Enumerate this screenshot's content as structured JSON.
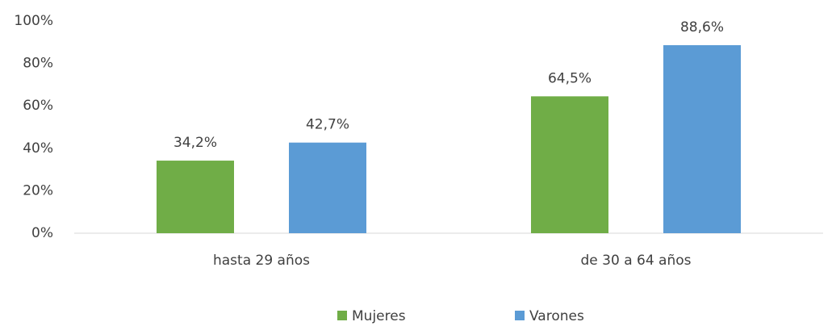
{
  "chart_data": {
    "type": "bar",
    "categories": [
      "hasta 29 años",
      "de 30 a 64 años"
    ],
    "series": [
      {
        "name": "Mujeres",
        "color": "#70ad47",
        "values": [
          34.2,
          64.5
        ],
        "value_labels": [
          "34,2%",
          "64,5%"
        ]
      },
      {
        "name": "Varones",
        "color": "#5b9bd5",
        "values": [
          42.7,
          88.6
        ],
        "value_labels": [
          "42,7%",
          "88,6%"
        ]
      }
    ],
    "ylim": [
      0,
      100
    ],
    "yticks": [
      {
        "value": 0,
        "label": "0%"
      },
      {
        "value": 20,
        "label": "20%"
      },
      {
        "value": 40,
        "label": "40%"
      },
      {
        "value": 60,
        "label": "60%"
      },
      {
        "value": 80,
        "label": "80%"
      },
      {
        "value": 100,
        "label": "100%"
      }
    ],
    "grid": false,
    "legend": "bottom"
  }
}
